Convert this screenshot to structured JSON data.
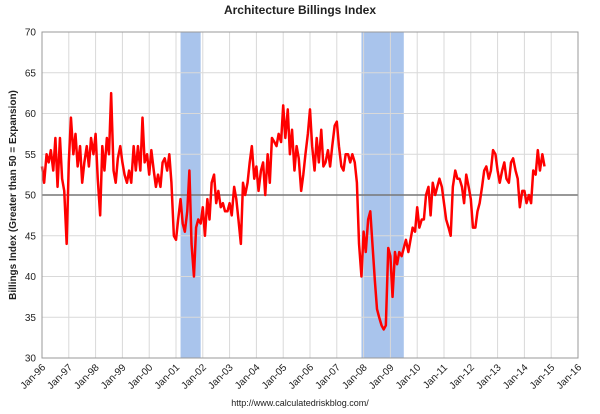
{
  "chart_data": {
    "type": "line",
    "title": "Architecture Billings Index",
    "y_label": "Billings Index (Greater than 50 = Expansion)",
    "source": "http://www.calculatedriskblog.com/",
    "xlim": [
      1996,
      2016
    ],
    "xticks": [
      {
        "value": 1996,
        "label": "Jan-96"
      },
      {
        "value": 1997,
        "label": "Jan-97"
      },
      {
        "value": 1998,
        "label": "Jan-98"
      },
      {
        "value": 1999,
        "label": "Jan-99"
      },
      {
        "value": 2000,
        "label": "Jan-00"
      },
      {
        "value": 2001,
        "label": "Jan-01"
      },
      {
        "value": 2002,
        "label": "Jan-02"
      },
      {
        "value": 2003,
        "label": "Jan-03"
      },
      {
        "value": 2004,
        "label": "Jan-04"
      },
      {
        "value": 2005,
        "label": "Jan-05"
      },
      {
        "value": 2006,
        "label": "Jan-06"
      },
      {
        "value": 2007,
        "label": "Jan-07"
      },
      {
        "value": 2008,
        "label": "Jan-08"
      },
      {
        "value": 2009,
        "label": "Jan-09"
      },
      {
        "value": 2010,
        "label": "Jan-10"
      },
      {
        "value": 2011,
        "label": "Jan-11"
      },
      {
        "value": 2012,
        "label": "Jan-12"
      },
      {
        "value": 2013,
        "label": "Jan-13"
      },
      {
        "value": 2014,
        "label": "Jan-14"
      },
      {
        "value": 2015,
        "label": "Jan-15"
      },
      {
        "value": 2016,
        "label": "Jan-16"
      }
    ],
    "ylim": [
      30,
      70
    ],
    "yticks": [
      30,
      35,
      40,
      45,
      50,
      55,
      60,
      65,
      70
    ],
    "grid": true,
    "reference_line": 50,
    "recessions": [
      [
        2001.17,
        2001.92
      ],
      [
        2007.92,
        2009.5
      ]
    ],
    "recession_color": "#a9c4ec",
    "series": [
      {
        "color": "#ff0000",
        "x": [
          1996.0,
          1996.08,
          1996.17,
          1996.25,
          1996.33,
          1996.42,
          1996.5,
          1996.58,
          1996.67,
          1996.75,
          1996.83,
          1996.92,
          1997.0,
          1997.08,
          1997.17,
          1997.25,
          1997.33,
          1997.42,
          1997.5,
          1997.58,
          1997.67,
          1997.75,
          1997.83,
          1997.92,
          1998.0,
          1998.08,
          1998.17,
          1998.25,
          1998.33,
          1998.42,
          1998.5,
          1998.58,
          1998.67,
          1998.75,
          1998.83,
          1998.92,
          1999.0,
          1999.08,
          1999.17,
          1999.25,
          1999.33,
          1999.42,
          1999.5,
          1999.58,
          1999.67,
          1999.75,
          1999.83,
          1999.92,
          2000.0,
          2000.08,
          2000.17,
          2000.25,
          2000.33,
          2000.42,
          2000.5,
          2000.58,
          2000.67,
          2000.75,
          2000.83,
          2000.92,
          2001.0,
          2001.08,
          2001.17,
          2001.25,
          2001.33,
          2001.42,
          2001.5,
          2001.58,
          2001.67,
          2001.75,
          2001.83,
          2001.92,
          2002.0,
          2002.08,
          2002.17,
          2002.25,
          2002.33,
          2002.42,
          2002.5,
          2002.58,
          2002.67,
          2002.75,
          2002.83,
          2002.92,
          2003.0,
          2003.08,
          2003.17,
          2003.25,
          2003.33,
          2003.42,
          2003.5,
          2003.58,
          2003.67,
          2003.75,
          2003.83,
          2003.92,
          2004.0,
          2004.08,
          2004.17,
          2004.25,
          2004.33,
          2004.42,
          2004.5,
          2004.58,
          2004.67,
          2004.75,
          2004.83,
          2004.92,
          2005.0,
          2005.08,
          2005.17,
          2005.25,
          2005.33,
          2005.42,
          2005.5,
          2005.58,
          2005.67,
          2005.75,
          2005.83,
          2005.92,
          2006.0,
          2006.08,
          2006.17,
          2006.25,
          2006.33,
          2006.42,
          2006.5,
          2006.58,
          2006.67,
          2006.75,
          2006.83,
          2006.92,
          2007.0,
          2007.08,
          2007.17,
          2007.25,
          2007.33,
          2007.42,
          2007.5,
          2007.58,
          2007.67,
          2007.75,
          2007.83,
          2007.92,
          2008.0,
          2008.08,
          2008.17,
          2008.25,
          2008.33,
          2008.42,
          2008.5,
          2008.58,
          2008.67,
          2008.75,
          2008.83,
          2008.92,
          2009.0,
          2009.08,
          2009.17,
          2009.25,
          2009.33,
          2009.42,
          2009.5,
          2009.58,
          2009.67,
          2009.75,
          2009.83,
          2009.92,
          2010.0,
          2010.08,
          2010.17,
          2010.25,
          2010.33,
          2010.42,
          2010.5,
          2010.58,
          2010.67,
          2010.75,
          2010.83,
          2010.92,
          2011.0,
          2011.08,
          2011.17,
          2011.25,
          2011.33,
          2011.42,
          2011.5,
          2011.58,
          2011.67,
          2011.75,
          2011.83,
          2011.92,
          2012.0,
          2012.08,
          2012.17,
          2012.25,
          2012.33,
          2012.42,
          2012.5,
          2012.58,
          2012.67,
          2012.75,
          2012.83,
          2012.92,
          2013.0,
          2013.08,
          2013.17,
          2013.25,
          2013.33,
          2013.42,
          2013.5,
          2013.58,
          2013.67,
          2013.75,
          2013.83,
          2013.92,
          2014.0,
          2014.08,
          2014.17,
          2014.25,
          2014.33,
          2014.42,
          2014.5,
          2014.58,
          2014.67,
          2014.75
        ],
        "values": [
          53.5,
          51.5,
          55,
          54,
          55.5,
          53,
          57,
          51,
          57,
          52,
          50.5,
          44,
          54,
          59.5,
          55,
          57.5,
          53.5,
          56,
          51.5,
          54,
          56,
          53.5,
          57,
          55,
          57.5,
          52,
          47.5,
          56,
          53,
          57,
          55,
          62.5,
          53,
          51.5,
          54.5,
          56,
          54,
          52.5,
          51.5,
          53,
          51.5,
          56,
          53,
          56,
          53,
          59.5,
          54,
          55,
          52.5,
          55.5,
          53,
          51,
          52.5,
          51,
          54,
          54.5,
          53,
          55,
          51.5,
          45,
          44.5,
          47,
          49.5,
          46.5,
          45.5,
          48,
          53,
          44,
          40,
          46,
          47,
          46.5,
          48.5,
          45,
          49.5,
          47,
          51.5,
          52.5,
          49,
          50.5,
          48.5,
          49,
          48,
          48,
          49,
          47.5,
          51,
          49.5,
          47,
          44,
          51.5,
          50,
          51.5,
          54,
          56,
          52,
          53.5,
          50.5,
          53,
          54,
          50,
          55,
          51.5,
          57,
          56.5,
          56,
          57.5,
          56.5,
          61,
          57,
          60.5,
          55,
          58,
          53,
          56,
          54.5,
          50.5,
          52.5,
          55,
          57.5,
          60.5,
          56,
          53,
          57,
          54,
          58,
          53.5,
          54,
          55.5,
          53.5,
          56,
          58.5,
          59,
          56,
          53.5,
          53,
          55,
          55,
          54,
          55,
          54,
          51.5,
          44,
          40,
          45.5,
          43,
          47,
          48,
          44,
          39.5,
          36,
          35,
          34,
          33.5,
          34,
          43.5,
          42.5,
          37.5,
          43,
          41.5,
          43,
          42.5,
          43.5,
          44.5,
          43,
          44.5,
          46,
          45.5,
          48.5,
          46,
          47,
          47,
          50,
          51,
          47.5,
          51.5,
          50,
          51,
          52,
          51,
          49,
          47,
          46,
          45,
          51,
          53,
          52,
          52,
          51,
          49,
          52.5,
          51,
          49.5,
          46,
          46,
          48,
          49,
          51,
          53,
          53.5,
          52,
          53,
          55.5,
          55,
          53,
          51.5,
          53,
          54,
          52,
          51.5,
          54,
          54.5,
          53,
          52,
          48.5,
          50.5,
          50.5,
          49,
          50,
          49,
          53,
          52.5,
          55.5,
          53,
          55,
          53.5
        ]
      }
    ]
  }
}
